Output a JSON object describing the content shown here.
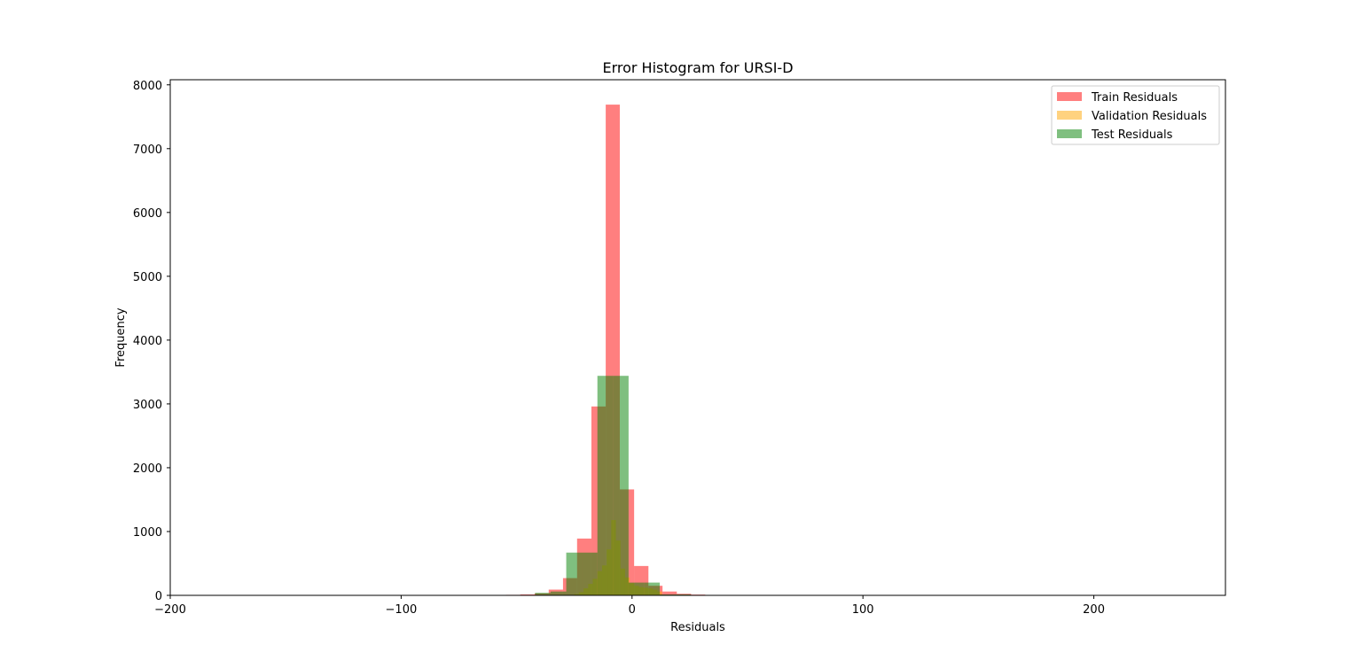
{
  "chart_data": {
    "type": "bar",
    "title": "Error Histogram for URSI-D",
    "xlabel": "Residuals",
    "ylabel": "Frequency",
    "xlim": [
      -200,
      257
    ],
    "ylim": [
      0,
      8080
    ],
    "xticks": [
      -200,
      -100,
      0,
      100,
      200
    ],
    "xtick_labels": [
      "−200",
      "−100",
      "0",
      "100",
      "200"
    ],
    "yticks": [
      0,
      1000,
      2000,
      3000,
      4000,
      5000,
      6000,
      7000,
      8000
    ],
    "ytick_labels": [
      "0",
      "1000",
      "2000",
      "3000",
      "4000",
      "5000",
      "6000",
      "7000",
      "8000"
    ],
    "grid": false,
    "legend_position": "top-right",
    "series": [
      {
        "name": "Train Residuals",
        "color": "#ff0000",
        "opacity": 0.5,
        "bins": [
          {
            "x0": -54.6,
            "x1": -48.4,
            "count": 8
          },
          {
            "x0": -48.4,
            "x1": -42.2,
            "count": 15
          },
          {
            "x0": -42.2,
            "x1": -36.1,
            "count": 30
          },
          {
            "x0": -36.1,
            "x1": -29.9,
            "count": 90
          },
          {
            "x0": -29.9,
            "x1": -23.8,
            "count": 270
          },
          {
            "x0": -23.8,
            "x1": -17.6,
            "count": 890
          },
          {
            "x0": -17.6,
            "x1": -11.4,
            "count": 2960
          },
          {
            "x0": -11.4,
            "x1": -5.3,
            "count": 7690
          },
          {
            "x0": -5.3,
            "x1": 0.9,
            "count": 1660
          },
          {
            "x0": 0.9,
            "x1": 7.1,
            "count": 460
          },
          {
            "x0": 7.1,
            "x1": 13.2,
            "count": 150
          },
          {
            "x0": 13.2,
            "x1": 19.4,
            "count": 60
          },
          {
            "x0": 19.4,
            "x1": 25.6,
            "count": 25
          },
          {
            "x0": 25.6,
            "x1": 31.7,
            "count": 12
          },
          {
            "x0": 31.7,
            "x1": 37.9,
            "count": 6
          }
        ]
      },
      {
        "name": "Validation Residuals",
        "color": "#ffa500",
        "opacity": 0.5,
        "bins": [
          {
            "x0": -25.0,
            "x1": -23.0,
            "count": 20
          },
          {
            "x0": -23.0,
            "x1": -21.0,
            "count": 50
          },
          {
            "x0": -21.0,
            "x1": -19.0,
            "count": 110
          },
          {
            "x0": -19.0,
            "x1": -17.0,
            "count": 180
          },
          {
            "x0": -17.0,
            "x1": -15.0,
            "count": 260
          },
          {
            "x0": -15.0,
            "x1": -13.0,
            "count": 380
          },
          {
            "x0": -13.0,
            "x1": -11.0,
            "count": 470
          },
          {
            "x0": -11.0,
            "x1": -9.0,
            "count": 720
          },
          {
            "x0": -9.0,
            "x1": -7.0,
            "count": 1180
          },
          {
            "x0": -7.0,
            "x1": -5.0,
            "count": 860
          },
          {
            "x0": -5.0,
            "x1": -3.0,
            "count": 420
          },
          {
            "x0": -3.0,
            "x1": -1.0,
            "count": 280
          },
          {
            "x0": -1.0,
            "x1": 1.0,
            "count": 190
          },
          {
            "x0": 1.0,
            "x1": 3.0,
            "count": 150
          },
          {
            "x0": 3.0,
            "x1": 5.0,
            "count": 130
          },
          {
            "x0": 5.0,
            "x1": 7.0,
            "count": 120
          },
          {
            "x0": 7.0,
            "x1": 9.0,
            "count": 110
          },
          {
            "x0": 9.0,
            "x1": 11.0,
            "count": 90
          },
          {
            "x0": 11.0,
            "x1": 13.0,
            "count": 60
          }
        ]
      },
      {
        "name": "Test Residuals",
        "color": "#008000",
        "opacity": 0.5,
        "bins": [
          {
            "x0": -42.0,
            "x1": -35.3,
            "count": 40
          },
          {
            "x0": -35.3,
            "x1": -28.5,
            "count": 60
          },
          {
            "x0": -28.5,
            "x1": -21.8,
            "count": 670
          },
          {
            "x0": -21.8,
            "x1": -15.0,
            "count": 670
          },
          {
            "x0": -15.0,
            "x1": -8.3,
            "count": 3440
          },
          {
            "x0": -8.3,
            "x1": -1.5,
            "count": 3440
          },
          {
            "x0": -1.5,
            "x1": 5.2,
            "count": 200
          },
          {
            "x0": 5.2,
            "x1": 12.0,
            "count": 200
          },
          {
            "x0": 12.0,
            "x1": 18.7,
            "count": 15
          },
          {
            "x0": 18.7,
            "x1": 25.5,
            "count": 15
          }
        ]
      }
    ]
  }
}
